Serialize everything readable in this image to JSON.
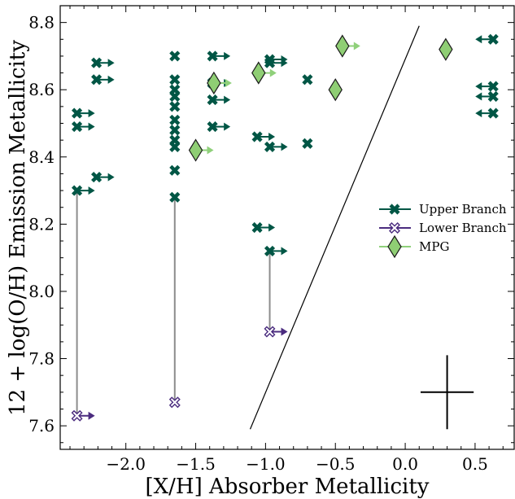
{
  "chart_data": {
    "type": "scatter",
    "title": "",
    "xlabel": "[X/H] Absorber Metallicity",
    "ylabel": "12 + log(O/H) Emission Metallicity",
    "xlim": [
      -2.47,
      0.78
    ],
    "ylim": [
      7.53,
      8.85
    ],
    "xticks": [
      -2.0,
      -1.5,
      -1.0,
      -0.5,
      0.0,
      0.5
    ],
    "xtick_labels": [
      "−2.0",
      "−1.5",
      "−1.0",
      "−0.5",
      "0.0",
      "0.5"
    ],
    "yticks": [
      7.6,
      7.8,
      8.0,
      8.2,
      8.4,
      8.6,
      8.8
    ],
    "ytick_labels": [
      "7.6",
      "7.8",
      "8.0",
      "8.2",
      "8.4",
      "8.6",
      "8.8"
    ],
    "legend_position": "center-right",
    "colors": {
      "upper": "#005645",
      "lower": "#4b2c7f",
      "mpg_fill": "#8fce74",
      "mpg_edge": "#1a1a1a",
      "mpg_arrow": "#8fd07a",
      "connector": "#8c8c8c",
      "one_to_one": "#000000"
    },
    "series": [
      {
        "name": "Upper Branch",
        "marker": "x-filled",
        "points": [
          {
            "x": -2.35,
            "y": 8.53,
            "limit": "right"
          },
          {
            "x": -2.35,
            "y": 8.49,
            "limit": "right"
          },
          {
            "x": -2.35,
            "y": 8.3,
            "limit": "right"
          },
          {
            "x": -2.21,
            "y": 8.68,
            "limit": "right"
          },
          {
            "x": -2.21,
            "y": 8.63,
            "limit": "right"
          },
          {
            "x": -2.21,
            "y": 8.34,
            "limit": "right"
          },
          {
            "x": -1.65,
            "y": 8.7,
            "limit": "none"
          },
          {
            "x": -1.65,
            "y": 8.63,
            "limit": "none"
          },
          {
            "x": -1.65,
            "y": 8.6,
            "limit": "none"
          },
          {
            "x": -1.65,
            "y": 8.58,
            "limit": "none"
          },
          {
            "x": -1.65,
            "y": 8.55,
            "limit": "none"
          },
          {
            "x": -1.65,
            "y": 8.51,
            "limit": "none"
          },
          {
            "x": -1.65,
            "y": 8.48,
            "limit": "none"
          },
          {
            "x": -1.65,
            "y": 8.45,
            "limit": "none"
          },
          {
            "x": -1.65,
            "y": 8.43,
            "limit": "none"
          },
          {
            "x": -1.65,
            "y": 8.36,
            "limit": "none"
          },
          {
            "x": -1.65,
            "y": 8.28,
            "limit": "none"
          },
          {
            "x": -1.38,
            "y": 8.7,
            "limit": "right"
          },
          {
            "x": -1.38,
            "y": 8.62,
            "limit": "right"
          },
          {
            "x": -1.38,
            "y": 8.57,
            "limit": "right"
          },
          {
            "x": -1.38,
            "y": 8.49,
            "limit": "right"
          },
          {
            "x": -0.97,
            "y": 8.69,
            "limit": "right"
          },
          {
            "x": -0.97,
            "y": 8.68,
            "limit": "right"
          },
          {
            "x": -0.97,
            "y": 8.43,
            "limit": "right"
          },
          {
            "x": -0.97,
            "y": 8.12,
            "limit": "right"
          },
          {
            "x": -1.06,
            "y": 8.46,
            "limit": "right"
          },
          {
            "x": -1.06,
            "y": 8.19,
            "limit": "right"
          },
          {
            "x": -0.7,
            "y": 8.63,
            "limit": "none"
          },
          {
            "x": -0.7,
            "y": 8.44,
            "limit": "none"
          },
          {
            "x": 0.63,
            "y": 8.75,
            "limit": "left"
          },
          {
            "x": 0.63,
            "y": 8.61,
            "limit": "left"
          },
          {
            "x": 0.63,
            "y": 8.58,
            "limit": "left"
          },
          {
            "x": 0.63,
            "y": 8.53,
            "limit": "left"
          }
        ]
      },
      {
        "name": "Lower Branch",
        "marker": "x-open",
        "points": [
          {
            "x": -2.35,
            "y": 7.63,
            "limit": "right"
          },
          {
            "x": -1.65,
            "y": 7.67,
            "limit": "none"
          },
          {
            "x": -0.97,
            "y": 7.88,
            "limit": "right"
          }
        ]
      },
      {
        "name": "MPG",
        "marker": "diamond",
        "points": [
          {
            "x": -1.5,
            "y": 8.42,
            "limit": "right"
          },
          {
            "x": -1.37,
            "y": 8.62,
            "limit": "right"
          },
          {
            "x": -1.05,
            "y": 8.65,
            "limit": "right"
          },
          {
            "x": -0.5,
            "y": 8.6,
            "limit": "none"
          },
          {
            "x": -0.45,
            "y": 8.73,
            "limit": "right"
          },
          {
            "x": 0.29,
            "y": 8.72,
            "limit": "none"
          }
        ]
      }
    ],
    "connectors": [
      {
        "x": -2.35,
        "y1": 7.63,
        "y2": 8.3
      },
      {
        "x": -1.65,
        "y1": 7.67,
        "y2": 8.28
      },
      {
        "x": -0.97,
        "y1": 7.88,
        "y2": 8.12
      }
    ],
    "one_to_one_line": {
      "x1": -1.11,
      "y1": 7.59,
      "x2": 0.1,
      "y2": 8.79
    },
    "error_cross": {
      "x": 0.3,
      "y": 7.7,
      "dx": 0.19,
      "dy": 0.11
    }
  }
}
